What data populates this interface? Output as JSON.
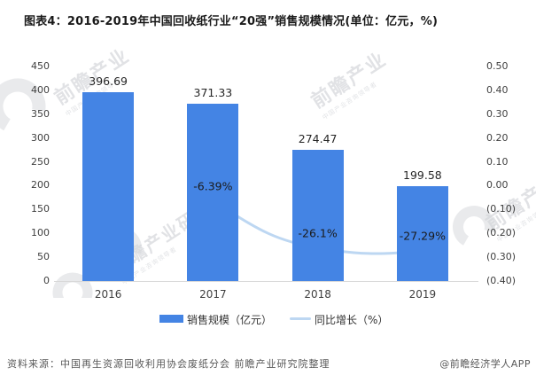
{
  "title": "图表4：2016-2019年中国回收纸行业“20强”销售规模情况(单位：亿元，%)",
  "chart_data": {
    "type": "combo",
    "categories": [
      "2016",
      "2017",
      "2018",
      "2019"
    ],
    "series": [
      {
        "name": "销售规模（亿元）",
        "type": "bar",
        "values": [
          396.69,
          371.33,
          274.47,
          199.58
        ],
        "labels": [
          "396.69",
          "371.33",
          "274.47",
          "199.58"
        ],
        "color": "#4484e4"
      },
      {
        "name": "同比增长（%）",
        "type": "line",
        "values": [
          null,
          -0.0639,
          -0.261,
          -0.2729
        ],
        "labels": [
          "",
          "-6.39%",
          "-26.1%",
          "-27.29%"
        ],
        "color": "#bdd7f2"
      }
    ],
    "left_axis": {
      "ticks": [
        "450",
        "400",
        "350",
        "300",
        "250",
        "200",
        "150",
        "100",
        "50",
        "0"
      ],
      "range": [
        0,
        450
      ]
    },
    "right_axis": {
      "ticks": [
        "0.50",
        "0.40",
        "0.30",
        "0.20",
        "0.10",
        "0.00",
        "(0.10)",
        "(0.20)",
        "(0.30)",
        "(0.40)"
      ],
      "range": [
        -0.4,
        0.5
      ]
    },
    "grid": false,
    "legend_position": "bottom",
    "title": "图表4：2016-2019年中国回收纸行业“20强”销售规模情况(单位：亿元，%)"
  },
  "legend": {
    "bar_label": "销售规模（亿元）",
    "line_label": "同比增长（%）"
  },
  "footer": {
    "source": "资料来源：中国再生资源回收利用协会废纸分会 前瞻产业研究院整理",
    "credit": "@前瞻经济学人APP"
  },
  "watermark": {
    "brand_short": "前瞻产业",
    "brand_full": "前瞻产业研究院",
    "tagline": "中国产业咨询领导者"
  },
  "colors": {
    "bar": "#4484e4",
    "line": "#bdd7f2",
    "title_text": "#1a1a1a",
    "axis_text": "#404040",
    "baseline": "#d9d9d9",
    "footer_text": "#595959",
    "watermark": "#c9ccd1"
  }
}
